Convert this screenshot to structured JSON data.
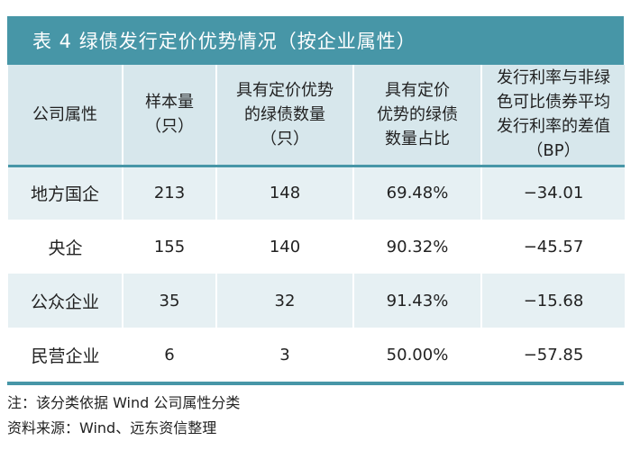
{
  "title": "表 4    绿债发行定价优势情况（按企业属性）",
  "table": {
    "headers": [
      "公司属性",
      "样本量\n（只）",
      "具有定价优势\n的绿债数量\n（只）",
      "具有定价\n优势的绿债\n数量占比",
      "发行利率与非绿\n色可比债券平均\n发行利率的差值\n（BP）"
    ],
    "rows": [
      {
        "attr": "地方国企",
        "sample": "213",
        "count": "148",
        "ratio": "69.48%",
        "diff": "−34.01"
      },
      {
        "attr": "央企",
        "sample": "155",
        "count": "140",
        "ratio": "90.32%",
        "diff": "−45.57"
      },
      {
        "attr": "公众企业",
        "sample": "35",
        "count": "32",
        "ratio": "91.43%",
        "diff": "−15.68"
      },
      {
        "attr": "民营企业",
        "sample": "6",
        "count": "3",
        "ratio": "50.00%",
        "diff": "−57.85"
      }
    ]
  },
  "notes": {
    "note": "注：该分类依据 Wind 公司属性分类",
    "source": "资料来源：Wind、远东资信整理"
  },
  "colors": {
    "accent": "#4796a7",
    "header_bg": "#d7e7ec",
    "row_alt_bg": "#e6f0f3"
  }
}
